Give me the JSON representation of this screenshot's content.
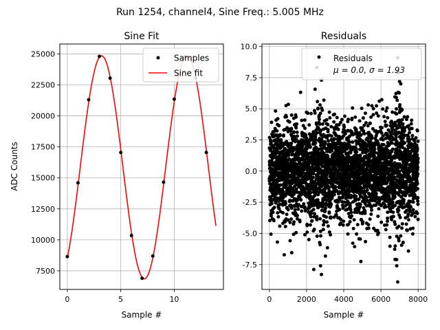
{
  "figure": {
    "suptitle": "Run 1254, channel4, Sine Freq.: 5.005 MHz"
  },
  "chart_data": [
    {
      "type": "line",
      "title": "Sine Fit",
      "xlabel": "Sample #",
      "ylabel": "ADC Counts",
      "xlim": [
        -0.7,
        14.6
      ],
      "ylim": [
        6000,
        25800
      ],
      "xticks": [
        0,
        5,
        10
      ],
      "yticks": [
        7500,
        10000,
        12500,
        15000,
        17500,
        20000,
        22500,
        25000
      ],
      "grid": true,
      "legend": {
        "placement": "upper-right",
        "entries": [
          "Samples",
          "Sine fit"
        ]
      },
      "series": [
        {
          "name": "Samples",
          "kind": "scatter",
          "color": "#000000",
          "x": [
            0,
            1,
            2,
            3,
            4,
            5,
            6,
            7,
            8,
            9,
            10,
            11,
            12,
            13
          ],
          "y": [
            8650,
            14600,
            21300,
            24800,
            23050,
            17050,
            10350,
            6900,
            8700,
            14650,
            21350,
            24750,
            23050,
            17050
          ]
        },
        {
          "name": "Sine fit",
          "kind": "line",
          "color": "#ff0000",
          "model": {
            "offset": 15850,
            "amplitude": 9000,
            "period": 7.992,
            "phase_sample": 1.21,
            "x_start": 0,
            "x_end": 13.9
          }
        }
      ]
    },
    {
      "type": "scatter",
      "title": "Residuals",
      "xlabel": "",
      "xlabel_text": "Sample #",
      "ylabel": "",
      "xlim": [
        -400,
        8400
      ],
      "ylim": [
        -9.5,
        10.2
      ],
      "xticks": [
        0,
        2000,
        4000,
        6000,
        8000
      ],
      "yticks": [
        -7.5,
        -5.0,
        -2.5,
        0.0,
        2.5,
        5.0,
        7.5,
        10.0
      ],
      "grid": true,
      "legend": {
        "placement": "upper-right",
        "entries": [
          "Residuals",
          "μ = 0.0, σ = 1.93"
        ]
      },
      "series": [
        {
          "name": "Residuals",
          "color": "#000000",
          "count": 8000,
          "mean": 0.0,
          "std": 1.93,
          "outliers": [
            {
              "x": 2550,
              "y": 8.3
            },
            {
              "x": 2800,
              "y": 7.3
            },
            {
              "x": 2800,
              "y": -8.3
            },
            {
              "x": 6900,
              "y": 9.1
            },
            {
              "x": 6900,
              "y": -8.9
            },
            {
              "x": 7000,
              "y": 7.2
            },
            {
              "x": 430,
              "y": -5.7
            },
            {
              "x": 2750,
              "y": -7.6
            },
            {
              "x": 6850,
              "y": -7.6
            }
          ]
        }
      ]
    }
  ]
}
